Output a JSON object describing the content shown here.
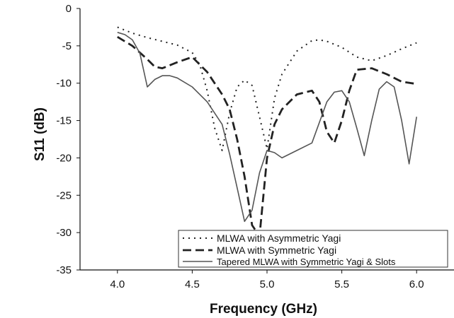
{
  "chart_data": {
    "type": "line",
    "title": "",
    "xlabel": "Frequency (GHz)",
    "ylabel": "S11 (dB)",
    "xlim": [
      3.75,
      6.25
    ],
    "ylim": [
      -35,
      0
    ],
    "xticks": [
      "4.0",
      "4.5",
      "5.0",
      "5.5",
      "6.0"
    ],
    "yticks": [
      "0",
      "-5",
      "-10",
      "-15",
      "-20",
      "-25",
      "-30",
      "-35"
    ],
    "grid": false,
    "legend_position": "bottom-right",
    "series": [
      {
        "name": "MLWA with Asymmetric Yagi",
        "style": "dotted",
        "color": "#222222",
        "x": [
          4.0,
          4.1,
          4.2,
          4.3,
          4.4,
          4.5,
          4.55,
          4.6,
          4.65,
          4.7,
          4.75,
          4.8,
          4.85,
          4.9,
          4.95,
          5.0,
          5.05,
          5.1,
          5.2,
          5.3,
          5.35,
          5.4,
          5.5,
          5.6,
          5.7,
          5.8,
          5.9,
          6.0
        ],
        "y": [
          -2.5,
          -3.3,
          -3.9,
          -4.4,
          -4.9,
          -5.9,
          -7.5,
          -11.0,
          -16.0,
          -19.0,
          -14.0,
          -10.5,
          -9.6,
          -10.3,
          -14.5,
          -18.8,
          -12.0,
          -8.8,
          -5.7,
          -4.3,
          -4.2,
          -4.4,
          -5.2,
          -6.5,
          -7.0,
          -6.3,
          -5.4,
          -4.6
        ]
      },
      {
        "name": "MLWA with Symmetric Yagi",
        "style": "dashed",
        "color": "#222222",
        "x": [
          4.0,
          4.1,
          4.2,
          4.25,
          4.3,
          4.4,
          4.5,
          4.6,
          4.7,
          4.75,
          4.8,
          4.85,
          4.9,
          4.95,
          5.0,
          5.05,
          5.1,
          5.2,
          5.3,
          5.35,
          5.4,
          5.45,
          5.5,
          5.55,
          5.6,
          5.7,
          5.8,
          5.9,
          6.0
        ],
        "y": [
          -3.8,
          -5.0,
          -6.8,
          -7.8,
          -8.0,
          -7.2,
          -6.5,
          -8.5,
          -11.5,
          -13.5,
          -17.5,
          -22.5,
          -29.0,
          -30.5,
          -20.0,
          -15.5,
          -13.5,
          -11.5,
          -11.0,
          -12.5,
          -16.5,
          -18.0,
          -15.0,
          -11.0,
          -8.2,
          -8.0,
          -8.8,
          -9.8,
          -10.1
        ]
      },
      {
        "name": "Tapered MLWA with Symmetric Yagi & Slots",
        "style": "solid",
        "color": "#555555",
        "x": [
          4.0,
          4.05,
          4.1,
          4.15,
          4.2,
          4.25,
          4.3,
          4.35,
          4.4,
          4.5,
          4.6,
          4.7,
          4.75,
          4.8,
          4.85,
          4.9,
          4.95,
          5.0,
          5.05,
          5.1,
          5.2,
          5.3,
          5.4,
          5.45,
          5.5,
          5.55,
          5.6,
          5.65,
          5.7,
          5.75,
          5.8,
          5.85,
          5.9,
          5.95,
          6.0
        ],
        "y": [
          -3.2,
          -3.5,
          -4.2,
          -6.0,
          -10.5,
          -9.5,
          -9.0,
          -9.0,
          -9.3,
          -10.5,
          -12.5,
          -15.5,
          -19.5,
          -24.0,
          -28.5,
          -27.0,
          -22.0,
          -19.0,
          -19.3,
          -20.0,
          -19.0,
          -18.0,
          -12.5,
          -11.2,
          -11.0,
          -12.5,
          -16.0,
          -19.7,
          -15.0,
          -10.8,
          -9.8,
          -10.5,
          -15.0,
          -20.8,
          -14.5
        ]
      }
    ]
  }
}
